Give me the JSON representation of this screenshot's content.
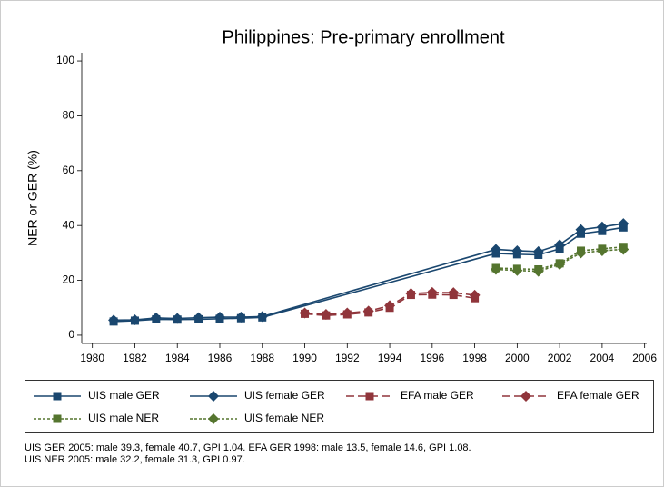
{
  "chart_data": {
    "type": "line",
    "title": "Philippines: Pre-primary enrollment",
    "y_label": "NER or GER (%)",
    "xlim": [
      1979.5,
      2006.1
    ],
    "ylim": [
      -3,
      103
    ],
    "xticks": [
      1980,
      1982,
      1984,
      1986,
      1988,
      1990,
      1992,
      1994,
      1996,
      1998,
      2000,
      2002,
      2004,
      2006
    ],
    "yticks": [
      0,
      20,
      40,
      60,
      80,
      100
    ],
    "series": [
      {
        "name": "UIS male GER",
        "color": "#1a476f",
        "style": "solid",
        "marker": "square",
        "x": [
          1981,
          1982,
          1983,
          1984,
          1985,
          1986,
          1987,
          1988,
          1999,
          2000,
          2001,
          2002,
          2003,
          2004,
          2005
        ],
        "values": [
          5.0,
          5.3,
          5.8,
          5.7,
          5.8,
          6.0,
          6.2,
          6.5,
          29.8,
          29.5,
          29.3,
          31.5,
          37.0,
          38.0,
          39.3
        ]
      },
      {
        "name": "UIS female GER",
        "color": "#1a476f",
        "style": "solid",
        "marker": "diamond",
        "x": [
          1981,
          1982,
          1983,
          1984,
          1985,
          1986,
          1987,
          1988,
          1999,
          2000,
          2001,
          2002,
          2003,
          2004,
          2005
        ],
        "values": [
          5.5,
          5.6,
          6.3,
          6.1,
          6.4,
          6.6,
          6.6,
          6.8,
          31.3,
          30.8,
          30.5,
          33.0,
          38.5,
          39.5,
          40.7
        ]
      },
      {
        "name": "EFA male GER",
        "color": "#90353b",
        "style": "dashed",
        "marker": "square",
        "x": [
          1990,
          1991,
          1992,
          1993,
          1994,
          1995,
          1996,
          1997,
          1998
        ],
        "values": [
          7.8,
          7.2,
          7.6,
          8.3,
          10.0,
          14.7,
          14.8,
          14.7,
          13.5
        ]
      },
      {
        "name": "EFA female GER",
        "color": "#90353b",
        "style": "dashed",
        "marker": "diamond",
        "x": [
          1990,
          1991,
          1992,
          1993,
          1994,
          1995,
          1996,
          1997,
          1998
        ],
        "values": [
          8.1,
          7.6,
          8.1,
          8.8,
          10.8,
          15.2,
          15.6,
          15.5,
          14.6
        ]
      },
      {
        "name": "UIS male NER",
        "color": "#55752f",
        "style": "dotted",
        "marker": "square",
        "x": [
          1999,
          2000,
          2001,
          2002,
          2003,
          2004,
          2005
        ],
        "values": [
          24.5,
          24.2,
          24.0,
          26.2,
          30.8,
          31.5,
          32.2
        ]
      },
      {
        "name": "UIS female NER",
        "color": "#55752f",
        "style": "dotted",
        "marker": "diamond",
        "x": [
          1999,
          2000,
          2001,
          2002,
          2003,
          2004,
          2005
        ],
        "values": [
          24.0,
          23.6,
          23.3,
          25.8,
          30.0,
          30.8,
          31.3
        ]
      }
    ],
    "notes": [
      "UIS GER 2005: male 39.3, female 40.7, GPI 1.04. EFA GER 1998: male 13.5, female 14.6, GPI 1.08.",
      "UIS NER 2005: male 32.2, female 31.3, GPI 0.97."
    ]
  }
}
